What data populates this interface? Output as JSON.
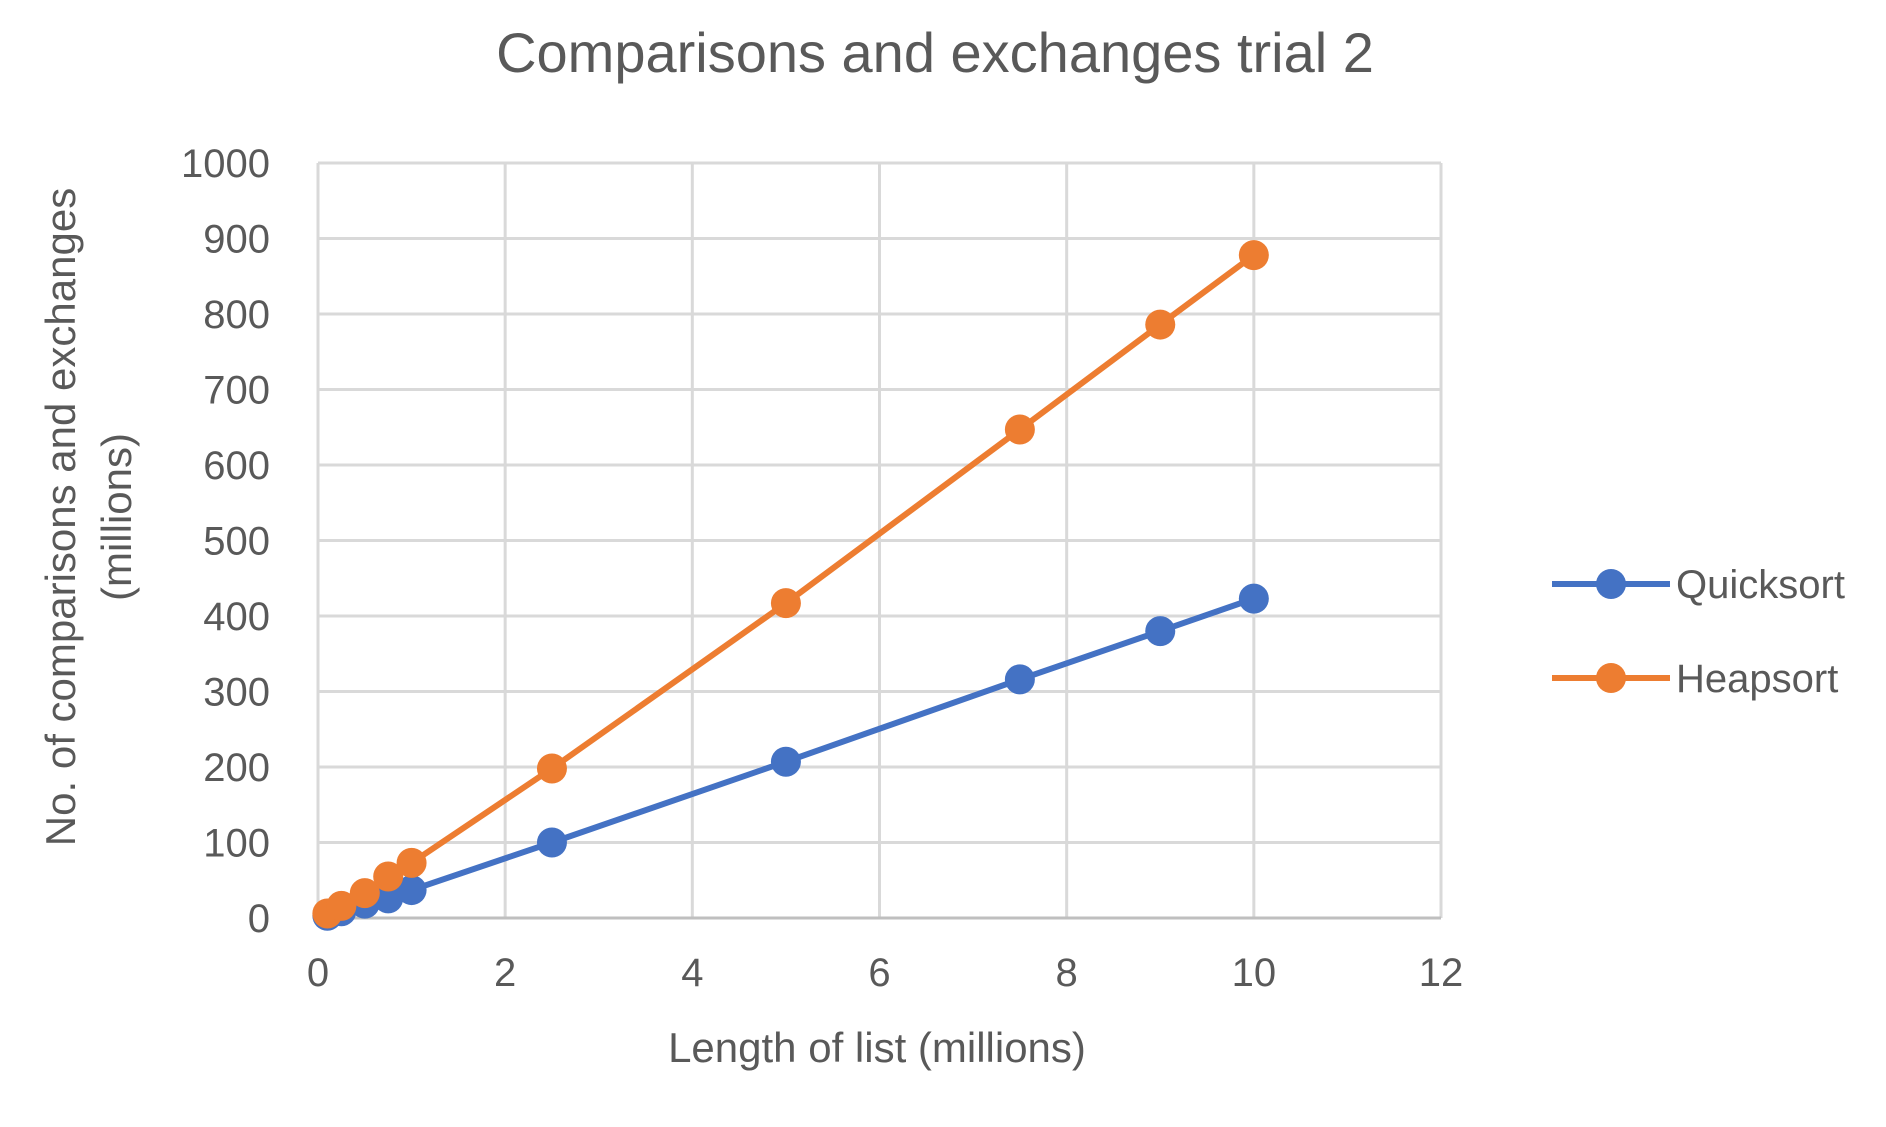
{
  "chart_data": {
    "type": "line",
    "title": "Comparisons and exchanges trial 2",
    "xlabel": "Length of list (millions)",
    "ylabel_lines": [
      "No. of comparisons and exchanges",
      "(millions)"
    ],
    "xlim": [
      0,
      12
    ],
    "ylim": [
      0,
      1000
    ],
    "x_ticks": [
      0,
      2,
      4,
      6,
      8,
      10,
      12
    ],
    "y_ticks": [
      0,
      100,
      200,
      300,
      400,
      500,
      600,
      700,
      800,
      900,
      1000
    ],
    "grid": true,
    "legend_position": "right",
    "series": [
      {
        "name": "Quicksort",
        "color": "#4472C4",
        "points": [
          {
            "x": 0.1,
            "y": 3
          },
          {
            "x": 0.25,
            "y": 9
          },
          {
            "x": 0.5,
            "y": 19
          },
          {
            "x": 0.75,
            "y": 26
          },
          {
            "x": 1,
            "y": 37
          },
          {
            "x": 2.5,
            "y": 100
          },
          {
            "x": 5,
            "y": 207
          },
          {
            "x": 7.5,
            "y": 316
          },
          {
            "x": 9,
            "y": 380
          },
          {
            "x": 10,
            "y": 423
          }
        ]
      },
      {
        "name": "Heapsort",
        "color": "#ED7D31",
        "points": [
          {
            "x": 0.1,
            "y": 6
          },
          {
            "x": 0.25,
            "y": 16
          },
          {
            "x": 0.5,
            "y": 33
          },
          {
            "x": 0.75,
            "y": 55
          },
          {
            "x": 1,
            "y": 73
          },
          {
            "x": 2.5,
            "y": 198
          },
          {
            "x": 5,
            "y": 417
          },
          {
            "x": 7.5,
            "y": 647
          },
          {
            "x": 9,
            "y": 786
          },
          {
            "x": 10,
            "y": 878
          }
        ]
      }
    ]
  }
}
